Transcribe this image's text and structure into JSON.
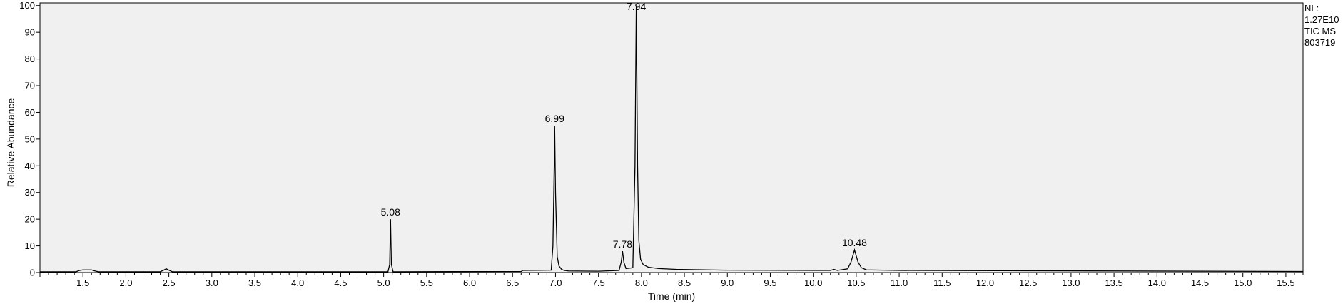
{
  "chart_data": {
    "type": "line",
    "title": "",
    "xlabel": "Time (min)",
    "ylabel": "Relative Abundance",
    "xlim": [
      1.0,
      15.7
    ],
    "ylim": [
      0,
      101
    ],
    "x_ticks": [
      1.5,
      2.0,
      2.5,
      3.0,
      3.5,
      4.0,
      4.5,
      5.0,
      5.5,
      6.0,
      6.5,
      7.0,
      7.5,
      8.0,
      8.5,
      9.0,
      9.5,
      10.0,
      10.5,
      11.0,
      11.5,
      12.0,
      12.5,
      13.0,
      13.5,
      14.0,
      14.5,
      15.0,
      15.5
    ],
    "x_tick_labels": [
      "1.5",
      "2.0",
      "2.5",
      "3.0",
      "3.5",
      "4.0",
      "4.5",
      "5.0",
      "5.5",
      "6.0",
      "6.5",
      "7.0",
      "7.5",
      "8.0",
      "8.5",
      "9.0",
      "9.5",
      "10.0",
      "10.5",
      "11.0",
      "11.5",
      "12.0",
      "12.5",
      "13.0",
      "13.5",
      "14.0",
      "14.5",
      "15.0",
      "15.5"
    ],
    "y_ticks": [
      0,
      10,
      20,
      30,
      40,
      50,
      60,
      70,
      80,
      90,
      100
    ],
    "y_tick_labels": [
      "0",
      "10",
      "20",
      "30",
      "40",
      "50",
      "60",
      "70",
      "80",
      "90",
      "100"
    ],
    "grid": false,
    "background_color": "#f0f0f0",
    "line_color": "#000000",
    "baseline": 0.3,
    "peaks": [
      {
        "label": "5.08",
        "x": 5.08,
        "y": 20
      },
      {
        "label": "6.99",
        "x": 6.99,
        "y": 55
      },
      {
        "label": "7.78",
        "x": 7.78,
        "y": 8
      },
      {
        "label": "7.94",
        "x": 7.94,
        "y": 100
      },
      {
        "label": "10.48",
        "x": 10.48,
        "y": 8.5
      }
    ],
    "series": [
      {
        "x": [
          1.0,
          1.42,
          1.46,
          1.5,
          1.6,
          1.64,
          1.68,
          2.4,
          2.44,
          2.47,
          2.5,
          2.54,
          5.05,
          5.07,
          5.08,
          5.09,
          5.11,
          6.6,
          6.62,
          6.95,
          6.97,
          6.985,
          6.99,
          7.0,
          7.02,
          7.04,
          7.07,
          7.1,
          7.15,
          7.5,
          7.74,
          7.765,
          7.78,
          7.795,
          7.82,
          7.9,
          7.925,
          7.94,
          7.955,
          7.97,
          7.99,
          8.02,
          8.08,
          8.2,
          8.4,
          9.0,
          10.2,
          10.24,
          10.28,
          10.4,
          10.44,
          10.48,
          10.52,
          10.56,
          10.62,
          11.0,
          15.7
        ],
        "y": [
          0.3,
          0.3,
          0.8,
          1.0,
          1.0,
          0.6,
          0.3,
          0.3,
          0.9,
          1.4,
          0.9,
          0.3,
          0.3,
          3,
          20,
          3,
          0.3,
          0.4,
          0.8,
          0.9,
          10,
          40,
          55,
          30,
          6,
          2.5,
          1.2,
          0.8,
          0.6,
          0.5,
          0.8,
          4,
          8,
          4,
          1.5,
          1.8,
          40,
          100,
          40,
          12,
          5,
          3,
          2,
          1.5,
          1.2,
          0.9,
          0.8,
          1.2,
          0.8,
          1.4,
          4,
          8.5,
          4,
          1.8,
          1.0,
          0.8,
          0.4
        ]
      }
    ]
  },
  "info": {
    "nl_label": "NL:",
    "nl_value": "1.27E10",
    "trace": "TIC  MS",
    "file_id": "803719"
  }
}
